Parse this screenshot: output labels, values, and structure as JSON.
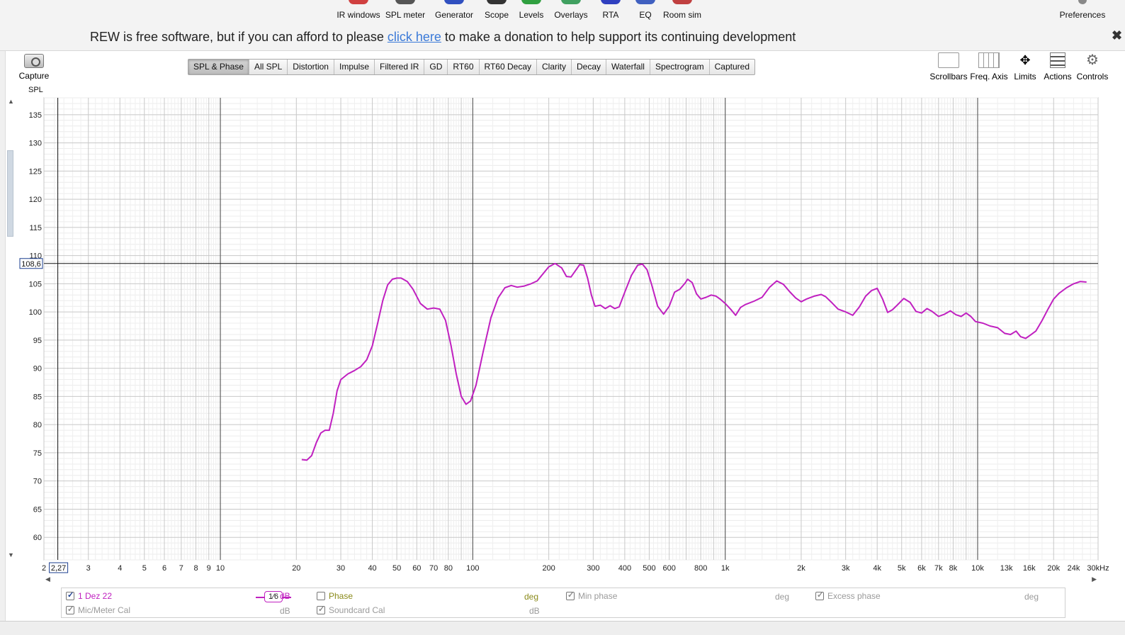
{
  "toolbar": {
    "items": [
      {
        "label": "IR windows",
        "icon": "ir-windows-icon",
        "color": "#d04040"
      },
      {
        "label": "SPL meter",
        "icon": "spl-meter-icon",
        "color": "#555555"
      },
      {
        "label": "Generator",
        "icon": "generator-icon",
        "color": "#3050c0"
      },
      {
        "label": "Scope",
        "icon": "scope-icon",
        "color": "#333333"
      },
      {
        "label": "Levels",
        "icon": "levels-icon",
        "color": "#30a040"
      },
      {
        "label": "Overlays",
        "icon": "overlays-icon",
        "color": "#40a060"
      },
      {
        "label": "RTA",
        "icon": "rta-icon",
        "color": "#3040c0"
      },
      {
        "label": "EQ",
        "icon": "eq-icon",
        "color": "#4060c0"
      },
      {
        "label": "Room sim",
        "icon": "room-sim-icon",
        "color": "#c04040"
      }
    ],
    "preferences": "Preferences"
  },
  "banner": {
    "before": "REW is free software, but if you can afford to please ",
    "link": "click here",
    "after": " to make a donation to help support its continuing development",
    "close": "✖"
  },
  "left": {
    "capture": "Capture",
    "axis_unit": "SPL"
  },
  "tabs": [
    {
      "label": "SPL & Phase",
      "active": true
    },
    {
      "label": "All SPL"
    },
    {
      "label": "Distortion"
    },
    {
      "label": "Impulse"
    },
    {
      "label": "Filtered IR"
    },
    {
      "label": "GD"
    },
    {
      "label": "RT60"
    },
    {
      "label": "RT60 Decay"
    },
    {
      "label": "Clarity"
    },
    {
      "label": "Decay"
    },
    {
      "label": "Waterfall"
    },
    {
      "label": "Spectrogram"
    },
    {
      "label": "Captured"
    }
  ],
  "right_tools": [
    {
      "label": "Scrollbars",
      "icon": "scrollbars-icon"
    },
    {
      "label": "Freq. Axis",
      "icon": "freq-axis-icon"
    },
    {
      "label": "Limits",
      "icon": "limits-icon"
    },
    {
      "label": "Actions",
      "icon": "actions-icon"
    },
    {
      "label": "Controls",
      "icon": "controls-icon"
    }
  ],
  "chart_data": {
    "type": "line",
    "xscale": "log",
    "xlim": [
      2,
      30000
    ],
    "ylim": [
      56,
      138
    ],
    "yticks": [
      60,
      65,
      70,
      75,
      80,
      85,
      90,
      95,
      100,
      105,
      110,
      115,
      120,
      125,
      130,
      135
    ],
    "xticks": [
      {
        "v": 2,
        "l": "2"
      },
      {
        "v": 3,
        "l": "3"
      },
      {
        "v": 4,
        "l": "4"
      },
      {
        "v": 5,
        "l": "5"
      },
      {
        "v": 6,
        "l": "6"
      },
      {
        "v": 7,
        "l": "7"
      },
      {
        "v": 8,
        "l": "8"
      },
      {
        "v": 9,
        "l": "9"
      },
      {
        "v": 10,
        "l": "10"
      },
      {
        "v": 20,
        "l": "20"
      },
      {
        "v": 30,
        "l": "30"
      },
      {
        "v": 40,
        "l": "40"
      },
      {
        "v": 50,
        "l": "50"
      },
      {
        "v": 60,
        "l": "60"
      },
      {
        "v": 70,
        "l": "70"
      },
      {
        "v": 80,
        "l": "80"
      },
      {
        "v": 100,
        "l": "100"
      },
      {
        "v": 200,
        "l": "200"
      },
      {
        "v": 300,
        "l": "300"
      },
      {
        "v": 400,
        "l": "400"
      },
      {
        "v": 500,
        "l": "500"
      },
      {
        "v": 600,
        "l": "600"
      },
      {
        "v": 800,
        "l": "800"
      },
      {
        "v": 1000,
        "l": "1k"
      },
      {
        "v": 2000,
        "l": "2k"
      },
      {
        "v": 3000,
        "l": "3k"
      },
      {
        "v": 4000,
        "l": "4k"
      },
      {
        "v": 5000,
        "l": "5k"
      },
      {
        "v": 6000,
        "l": "6k"
      },
      {
        "v": 7000,
        "l": "7k"
      },
      {
        "v": 8000,
        "l": "8k"
      },
      {
        "v": 10000,
        "l": "10k"
      },
      {
        "v": 13000,
        "l": "13k"
      },
      {
        "v": 16000,
        "l": "16k"
      },
      {
        "v": 20000,
        "l": "20k"
      },
      {
        "v": 24000,
        "l": "24k"
      },
      {
        "v": 30000,
        "l": "30kHz"
      }
    ],
    "cursor": {
      "x": 2.27,
      "y": 108.6,
      "x_label": "2,27",
      "y_label": "108,6"
    },
    "series": [
      {
        "name": "1 Dez 22",
        "color": "#c020c0",
        "points": [
          [
            21,
            73.8
          ],
          [
            22,
            73.7
          ],
          [
            23,
            74.5
          ],
          [
            24,
            76.8
          ],
          [
            25,
            78.5
          ],
          [
            26,
            79.0
          ],
          [
            27,
            79.0
          ],
          [
            28,
            82
          ],
          [
            29,
            86
          ],
          [
            30,
            88
          ],
          [
            32,
            89.0
          ],
          [
            34,
            89.6
          ],
          [
            36,
            90.3
          ],
          [
            38,
            91.5
          ],
          [
            40,
            94
          ],
          [
            42,
            98
          ],
          [
            44,
            102
          ],
          [
            46,
            104.8
          ],
          [
            48,
            105.8
          ],
          [
            50,
            106.0
          ],
          [
            52,
            106.0
          ],
          [
            55,
            105.4
          ],
          [
            58,
            104.0
          ],
          [
            62,
            101.5
          ],
          [
            66,
            100.5
          ],
          [
            70,
            100.7
          ],
          [
            74,
            100.5
          ],
          [
            78,
            98.5
          ],
          [
            82,
            94
          ],
          [
            86,
            89
          ],
          [
            90,
            85
          ],
          [
            94,
            83.6
          ],
          [
            98,
            84.2
          ],
          [
            103,
            87
          ],
          [
            110,
            93
          ],
          [
            118,
            99
          ],
          [
            126,
            102.5
          ],
          [
            134,
            104.3
          ],
          [
            142,
            104.7
          ],
          [
            150,
            104.4
          ],
          [
            160,
            104.6
          ],
          [
            170,
            105.0
          ],
          [
            180,
            105.5
          ],
          [
            190,
            106.8
          ],
          [
            200,
            108.0
          ],
          [
            212,
            108.6
          ],
          [
            225,
            107.8
          ],
          [
            235,
            106.3
          ],
          [
            245,
            106.2
          ],
          [
            255,
            107.3
          ],
          [
            265,
            108.4
          ],
          [
            275,
            108.3
          ],
          [
            285,
            106
          ],
          [
            295,
            103
          ],
          [
            305,
            101
          ],
          [
            320,
            101.2
          ],
          [
            335,
            100.6
          ],
          [
            350,
            101.1
          ],
          [
            365,
            100.6
          ],
          [
            380,
            100.9
          ],
          [
            400,
            103.5
          ],
          [
            425,
            106.5
          ],
          [
            450,
            108.3
          ],
          [
            470,
            108.5
          ],
          [
            490,
            107.5
          ],
          [
            510,
            105
          ],
          [
            540,
            101
          ],
          [
            570,
            99.6
          ],
          [
            600,
            101
          ],
          [
            630,
            103.5
          ],
          [
            660,
            104
          ],
          [
            690,
            105
          ],
          [
            710,
            105.8
          ],
          [
            740,
            105.2
          ],
          [
            770,
            103.2
          ],
          [
            800,
            102.3
          ],
          [
            840,
            102.6
          ],
          [
            880,
            103
          ],
          [
            920,
            102.8
          ],
          [
            960,
            102.2
          ],
          [
            1000,
            101.5
          ],
          [
            1050,
            100.5
          ],
          [
            1100,
            99.4
          ],
          [
            1150,
            100.8
          ],
          [
            1200,
            101.3
          ],
          [
            1300,
            101.9
          ],
          [
            1400,
            102.6
          ],
          [
            1500,
            104.4
          ],
          [
            1600,
            105.5
          ],
          [
            1700,
            104.9
          ],
          [
            1800,
            103.6
          ],
          [
            1900,
            102.5
          ],
          [
            2000,
            101.8
          ],
          [
            2100,
            102.3
          ],
          [
            2250,
            102.8
          ],
          [
            2400,
            103.1
          ],
          [
            2500,
            102.7
          ],
          [
            2650,
            101.6
          ],
          [
            2800,
            100.5
          ],
          [
            3000,
            100.0
          ],
          [
            3200,
            99.4
          ],
          [
            3400,
            100.9
          ],
          [
            3600,
            102.8
          ],
          [
            3800,
            103.8
          ],
          [
            4000,
            104.2
          ],
          [
            4200,
            102.3
          ],
          [
            4400,
            99.9
          ],
          [
            4600,
            100.4
          ],
          [
            4800,
            101.2
          ],
          [
            5100,
            102.4
          ],
          [
            5400,
            101.7
          ],
          [
            5700,
            100.1
          ],
          [
            6000,
            99.8
          ],
          [
            6300,
            100.6
          ],
          [
            6600,
            100.1
          ],
          [
            7000,
            99.2
          ],
          [
            7400,
            99.6
          ],
          [
            7800,
            100.2
          ],
          [
            8200,
            99.5
          ],
          [
            8600,
            99.2
          ],
          [
            9000,
            99.8
          ],
          [
            9400,
            99.2
          ],
          [
            9800,
            98.3
          ],
          [
            10500,
            98.0
          ],
          [
            11200,
            97.5
          ],
          [
            12000,
            97.2
          ],
          [
            12800,
            96.2
          ],
          [
            13500,
            96.0
          ],
          [
            14200,
            96.6
          ],
          [
            14800,
            95.6
          ],
          [
            15500,
            95.3
          ],
          [
            16200,
            95.9
          ],
          [
            17000,
            96.6
          ],
          [
            18000,
            98.5
          ],
          [
            19000,
            100.5
          ],
          [
            20000,
            102.3
          ],
          [
            21000,
            103.3
          ],
          [
            22500,
            104.3
          ],
          [
            24000,
            105.0
          ],
          [
            25500,
            105.4
          ],
          [
            27000,
            105.3
          ]
        ]
      }
    ]
  },
  "legend": {
    "row1": {
      "name": "1 Dez 22",
      "smoothing": "1⁄6",
      "unit_db": "dB",
      "phase": "Phase",
      "phase_unit": "deg",
      "min_phase": "Min phase",
      "min_phase_unit": "deg",
      "excess_phase": "Excess phase",
      "excess_phase_unit": "deg"
    },
    "row2": {
      "mic_cal": "Mic/Meter Cal",
      "mic_unit": "dB",
      "soundcard_cal": "Soundcard Cal",
      "soundcard_unit": "dB"
    },
    "colors": {
      "trace": "#c020c0",
      "phase": "#8a8a1a",
      "disabled": "#9a9a9a"
    }
  }
}
